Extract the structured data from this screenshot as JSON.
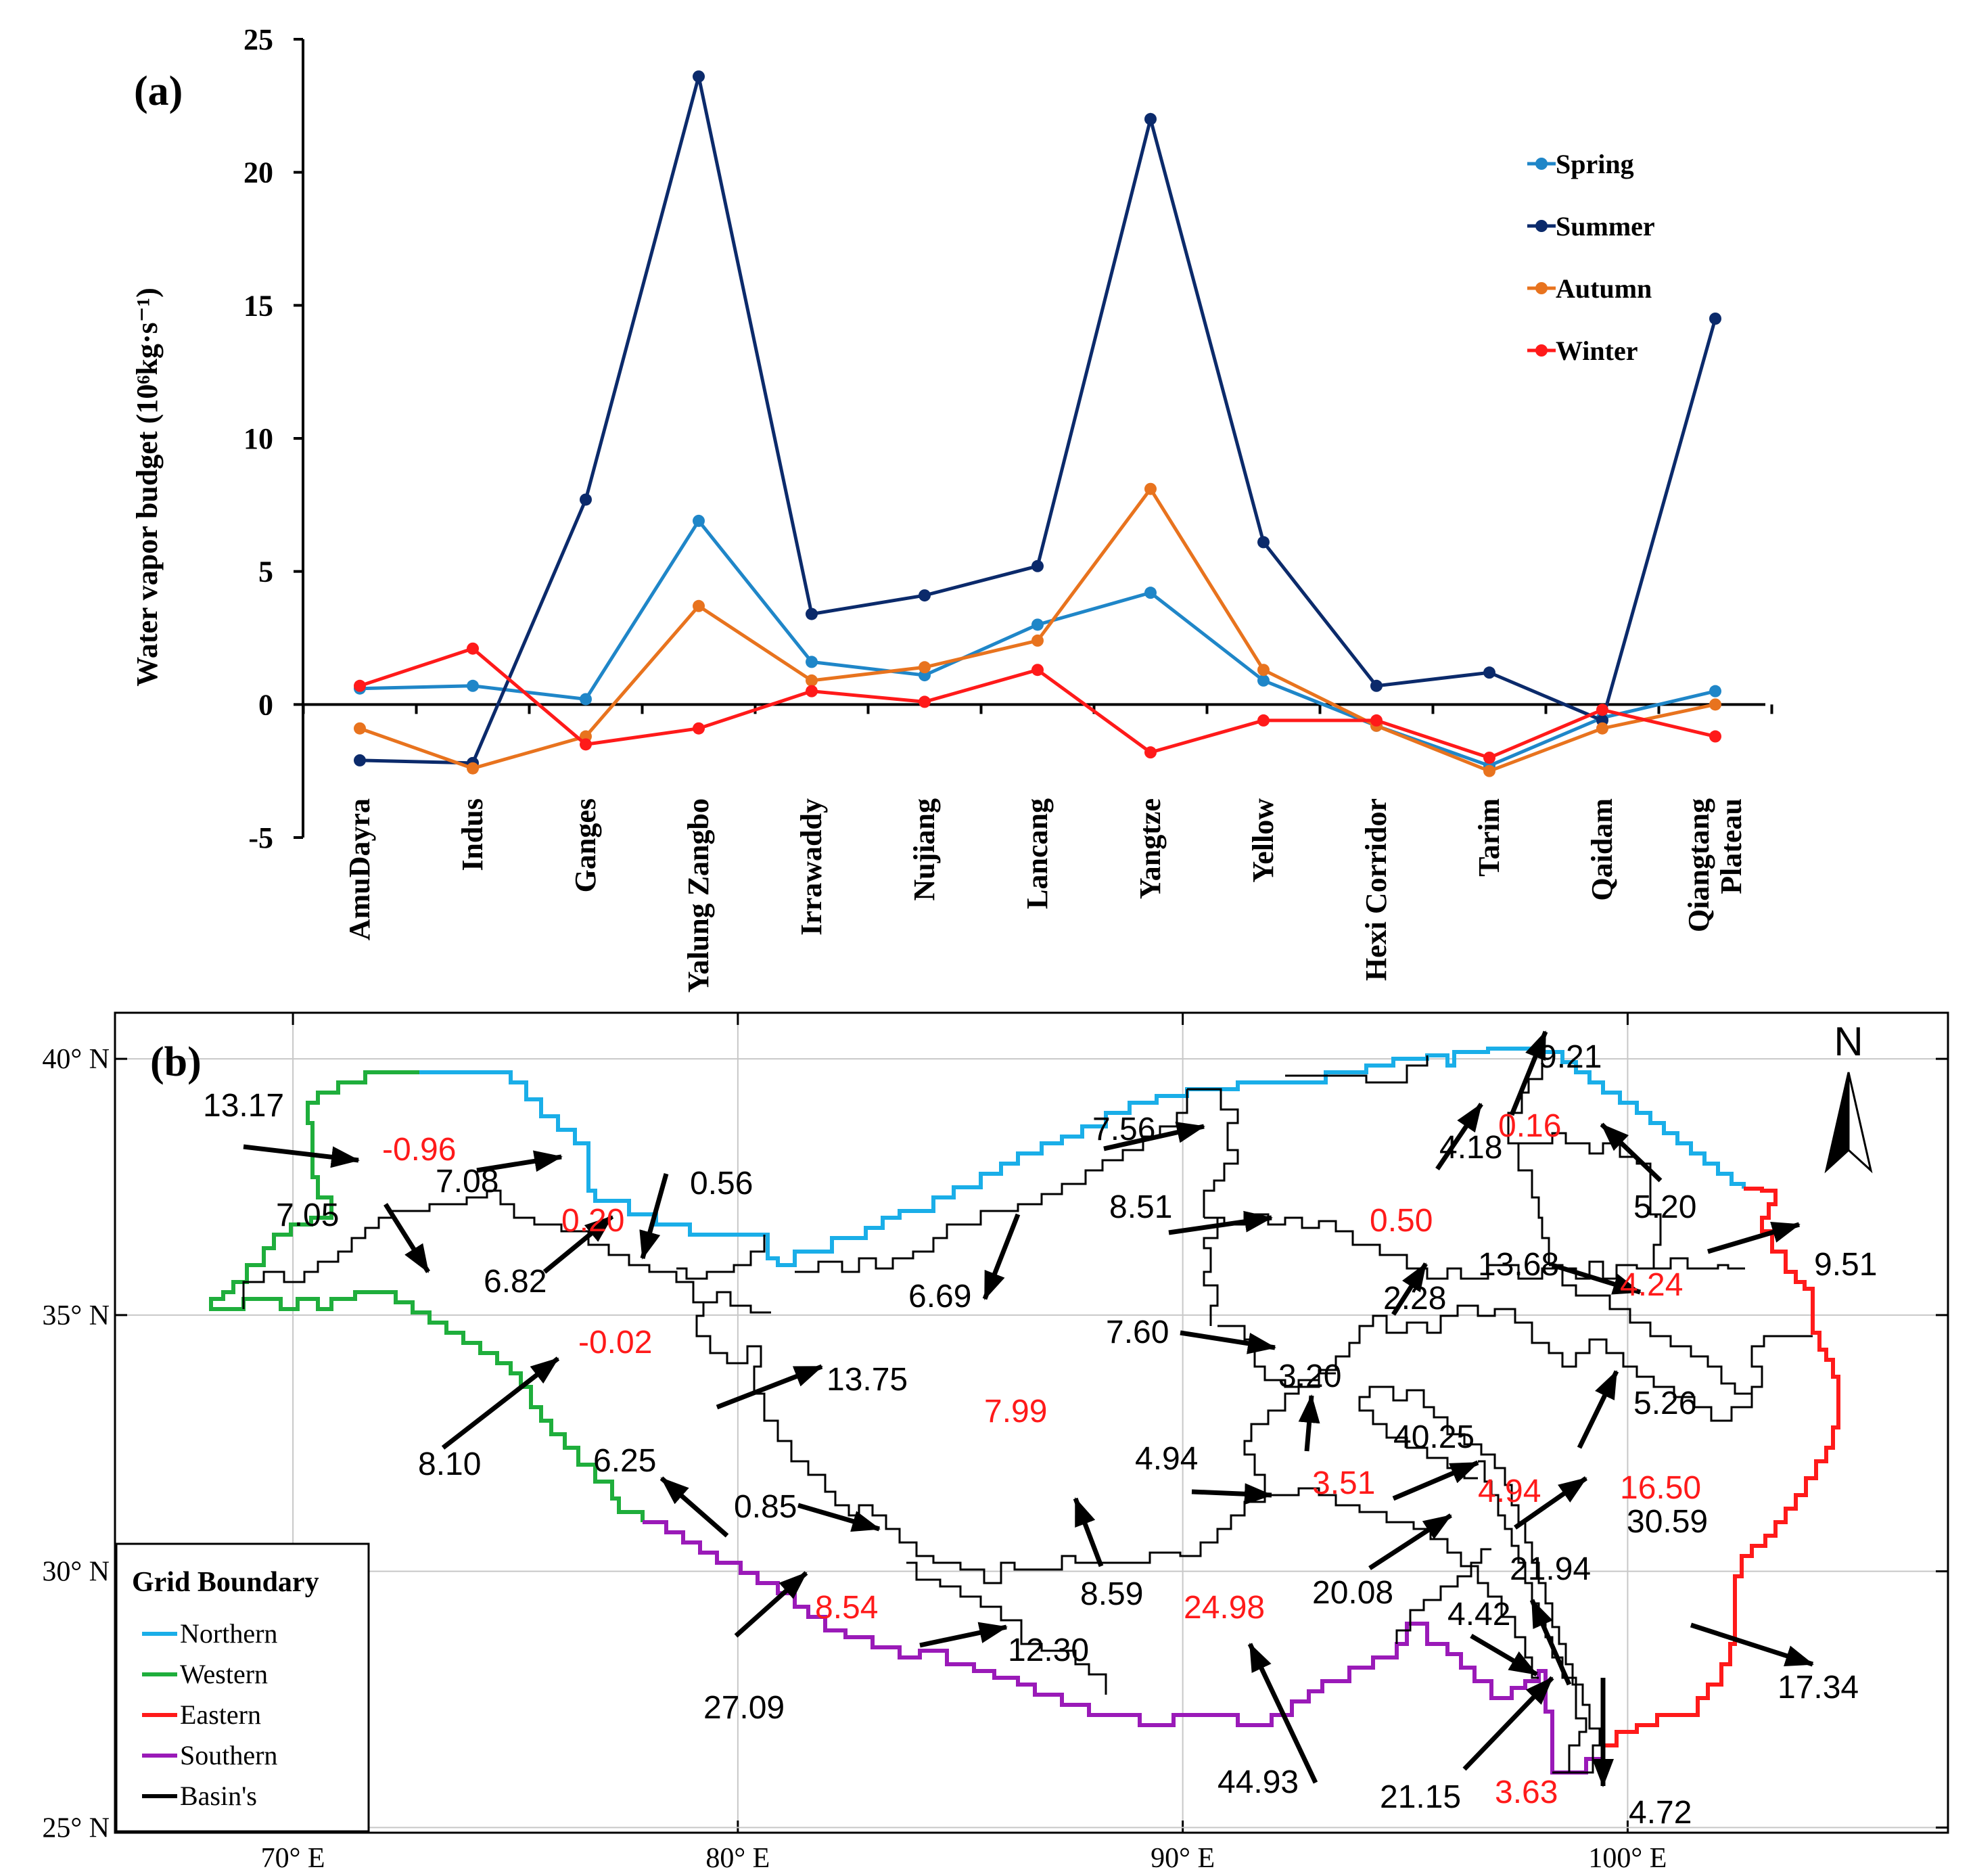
{
  "chart_data": [
    {
      "type": "line",
      "panel_label": "(a)",
      "ylabel": "Water vapor budget (10⁶kg·s⁻¹)",
      "ylim": [
        -5,
        25
      ],
      "yticks": [
        "25",
        "20",
        "15",
        "10",
        "5",
        "0",
        "-5"
      ],
      "categories": [
        "AmuDayra",
        "Indus",
        "Ganges",
        "Yalung Zangbo",
        "Irrawaddy",
        "Nujiang",
        "Lancang",
        "Yangtze",
        "Yellow",
        "Hexi Corridor",
        "Tarim",
        "Qaidam",
        "Qiangtang Plateau"
      ],
      "category_lines": [
        [
          "AmuDayra"
        ],
        [
          "Indus"
        ],
        [
          "Ganges"
        ],
        [
          "Yalung Zangbo"
        ],
        [
          "Irrawaddy"
        ],
        [
          "Nujiang"
        ],
        [
          "Lancang"
        ],
        [
          "Yangtze"
        ],
        [
          "Yellow"
        ],
        [
          "Hexi Corridor"
        ],
        [
          "Tarim"
        ],
        [
          "Qaidam"
        ],
        [
          "Qiangtang",
          "Plateau"
        ]
      ],
      "series": [
        {
          "name": "Spring",
          "color": "#1f86c8",
          "values": [
            0.6,
            0.7,
            0.2,
            6.9,
            1.6,
            1.1,
            3.0,
            4.2,
            0.9,
            -0.8,
            -2.3,
            -0.5,
            0.5
          ]
        },
        {
          "name": "Summer",
          "color": "#0b2a6b",
          "values": [
            -2.1,
            -2.2,
            7.7,
            23.6,
            3.4,
            4.1,
            5.2,
            22.0,
            6.1,
            0.7,
            1.2,
            -0.6,
            14.5
          ]
        },
        {
          "name": "Autumn",
          "color": "#e8731e",
          "values": [
            -0.9,
            -2.4,
            -1.2,
            3.7,
            0.9,
            1.4,
            2.4,
            8.1,
            1.3,
            -0.8,
            -2.5,
            -0.9,
            0.0
          ]
        },
        {
          "name": "Winter",
          "color": "#ff1a1a",
          "values": [
            0.7,
            2.1,
            -1.5,
            -0.9,
            0.5,
            0.1,
            1.3,
            -1.8,
            -0.6,
            -0.6,
            -2.0,
            -0.2,
            -1.2
          ]
        }
      ]
    },
    {
      "type": "map",
      "panel_label": "(b)",
      "north_label": "N",
      "lat_labels": [
        "40° N",
        "35° N",
        "30° N",
        "25° N"
      ],
      "lon_labels": [
        "70° E",
        "80° E",
        "90° E",
        "100° E"
      ],
      "lat_values": [
        40,
        35,
        30,
        25
      ],
      "lon_values": [
        70,
        80,
        90,
        100
      ],
      "lon_range": [
        66,
        107.2
      ],
      "lat_range": [
        24.9,
        40.9
      ],
      "flux_values": [
        "13.17",
        "7.08",
        "7.05",
        "0.56",
        "6.82",
        "8.10",
        "13.75",
        "6.25",
        "0.85",
        "12.30",
        "27.09",
        "8.59",
        "6.69",
        "7.56",
        "8.51",
        "7.60",
        "4.94",
        "44.93",
        "20.08",
        "40.25",
        "3.20",
        "2.28",
        "13.68",
        "4.18",
        "9.21",
        "5.20",
        "9.51",
        "5.26",
        "30.59",
        "21.94",
        "4.42",
        "21.15",
        "17.34",
        "4.72"
      ],
      "budget_values": [
        "-0.96",
        "0.20",
        "-0.02",
        "8.54",
        "7.99",
        "24.98",
        "3.51",
        "4.94",
        "0.50",
        "0.16",
        "4.24",
        "16.50",
        "3.63"
      ],
      "legend": {
        "title": "Grid Boundary",
        "items": [
          {
            "label": "Northern",
            "color": "#1aaee8"
          },
          {
            "label": "Western",
            "color": "#1fae3c"
          },
          {
            "label": "Eastern",
            "color": "#ff1a1a"
          },
          {
            "label": "Southern",
            "color": "#9a1ab8"
          },
          {
            "label": "Basin's",
            "color": "#000000"
          }
        ]
      }
    }
  ]
}
